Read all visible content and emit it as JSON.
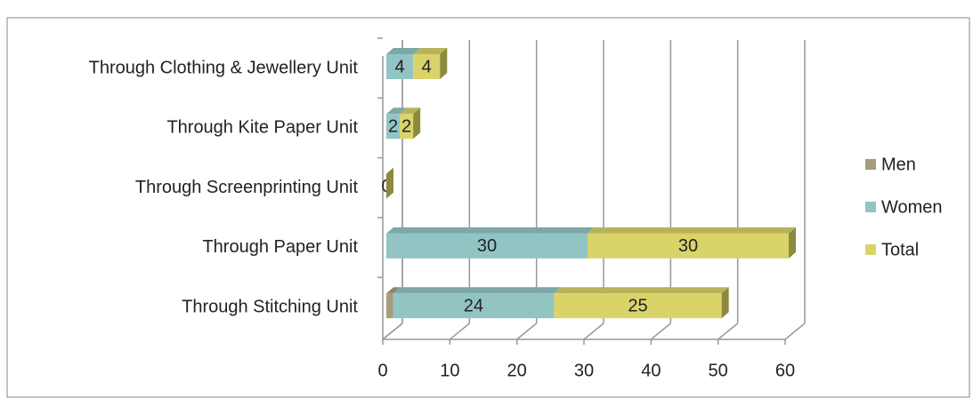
{
  "chart_data": {
    "type": "bar",
    "orientation": "horizontal",
    "stacked": true,
    "categories": [
      "Through Clothing & Jewellery Unit",
      "Through Kite Paper Unit",
      "Through Screenprinting Unit",
      "Through Paper Unit",
      "Through Stitching Unit"
    ],
    "series": [
      {
        "name": "Men",
        "color": "#a59d7d",
        "values": [
          0,
          0,
          0,
          0,
          1
        ],
        "value_labels": [
          null,
          null,
          null,
          null,
          null
        ]
      },
      {
        "name": "Women",
        "color": "#93c4c4",
        "values": [
          4,
          2,
          0,
          30,
          24
        ],
        "value_labels": [
          "4",
          "2",
          null,
          "30",
          "24"
        ]
      },
      {
        "name": "Total",
        "color": "#d9d36a",
        "values": [
          4,
          2,
          0,
          30,
          25
        ],
        "value_labels": [
          "4",
          "2",
          "0",
          "30",
          "25"
        ]
      }
    ],
    "xlim": [
      0,
      60
    ],
    "xticks": [
      0,
      10,
      20,
      30,
      40,
      50,
      60
    ],
    "grid": true,
    "legend": "right"
  }
}
